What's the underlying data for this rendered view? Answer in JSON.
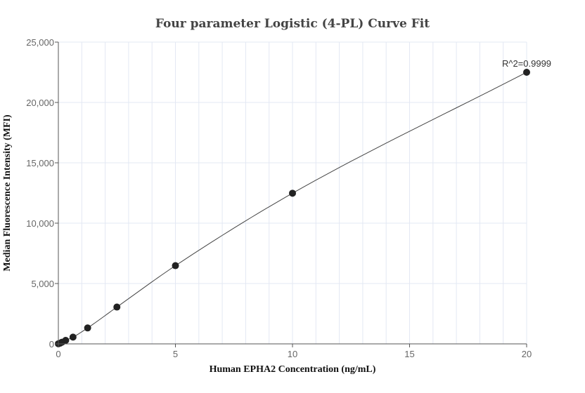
{
  "chart_data": {
    "type": "scatter",
    "title": "Four parameter Logistic (4-PL) Curve Fit",
    "xlabel": "Human EPHA2 Concentration (ng/mL)",
    "ylabel": "Median Fluorescence Intensity (MFI)",
    "xlim": [
      0,
      20
    ],
    "ylim": [
      0,
      25000
    ],
    "xticks": [
      "0",
      "5",
      "10",
      "15",
      "20"
    ],
    "yticks": [
      "0",
      "5,000",
      "10,000",
      "15,000",
      "20,000",
      "25,000"
    ],
    "grid": true,
    "annotation": "R^2=0.9999",
    "points": {
      "x": [
        0,
        0.078,
        0.156,
        0.3125,
        0.625,
        1.25,
        2.5,
        5,
        10,
        20
      ],
      "y": [
        10,
        60,
        140,
        290,
        560,
        1320,
        3050,
        6480,
        12480,
        22500
      ]
    },
    "colors": {
      "points": "#222222",
      "curve": "#444444",
      "grid": "#e3e8f3"
    }
  }
}
